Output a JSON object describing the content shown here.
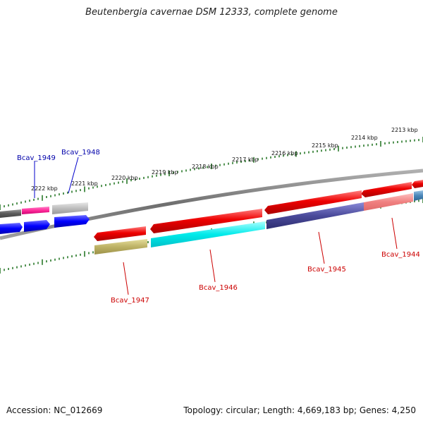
{
  "title": "Beutenbergia cavernae DSM 12333, complete genome",
  "footer": {
    "accession": "Accession: NC_012669",
    "summary": "Topology: circular; Length: 4,669,183 bp; Genes: 4,250"
  },
  "colors": {
    "backbone": "#7a7a7a",
    "tick": "#2a7a2a",
    "forward_label": "#0000aa",
    "reverse_label": "#cc0000"
  },
  "ruler_labels": [
    "2222 kbp",
    "2221 kbp",
    "2220 kbp",
    "2219 kbp",
    "2218 kbp",
    "2217 kbp",
    "2216 kbp",
    "2215 kbp",
    "2214 kbp",
    "2213 kbp"
  ],
  "gene_labels": {
    "Bcav_1949": "Bcav_1949",
    "Bcav_1948": "Bcav_1948",
    "Bcav_1947": "Bcav_1947",
    "Bcav_1946": "Bcav_1946",
    "Bcav_1945": "Bcav_1945",
    "Bcav_1944": "Bcav_1944"
  }
}
